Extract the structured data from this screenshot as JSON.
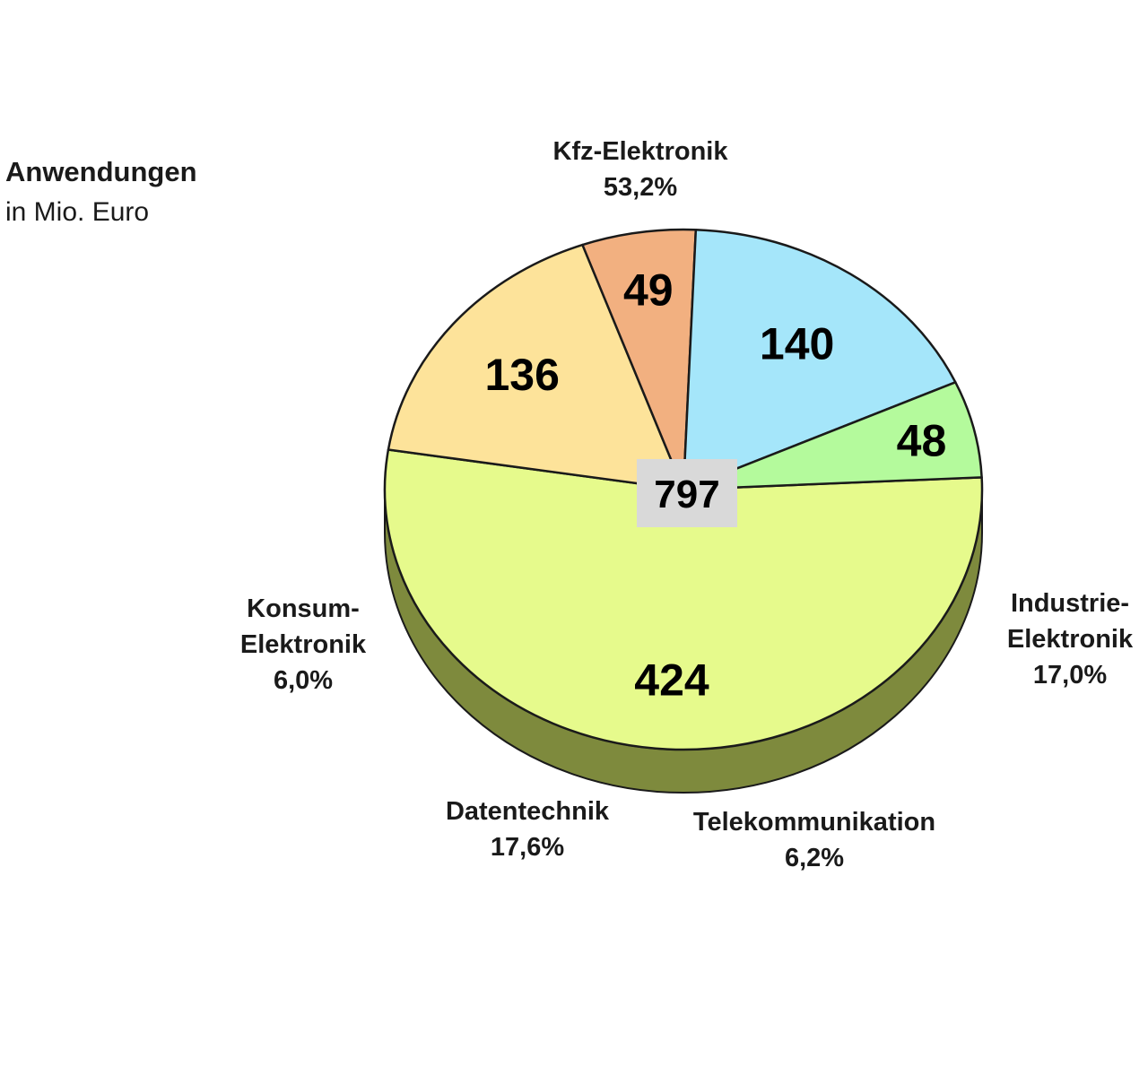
{
  "chart_data": {
    "type": "pie",
    "title": "Anwendungen",
    "subtitle": "in Mio. Euro",
    "total": "797",
    "slices": [
      {
        "label_lines": [
          "Kfz-Elektronik"
        ],
        "value": 424,
        "value_label": "424",
        "percent": "53,2%",
        "color": "#e6fa8c",
        "side_color": "#7e8a3d"
      },
      {
        "label_lines": [
          "Industrie-",
          "Elektronik"
        ],
        "value": 136,
        "value_label": "136",
        "percent": "17,0%",
        "color": "#fde39a",
        "side_color": "#8a7a4a"
      },
      {
        "label_lines": [
          "Telekommunikation"
        ],
        "value": 49,
        "value_label": "49",
        "percent": "6,2%",
        "color": "#f2b080",
        "side_color": "#7a4a2a"
      },
      {
        "label_lines": [
          "Datentechnik"
        ],
        "value": 140,
        "value_label": "140",
        "percent": "17,6%",
        "color": "#a5e6fa",
        "side_color": "#3d6578"
      },
      {
        "label_lines": [
          "Konsum-",
          "Elektronik"
        ],
        "value": 48,
        "value_label": "48",
        "percent": "6,0%",
        "color": "#b4fa9c",
        "side_color": "#557a3d"
      }
    ],
    "colors": {
      "outline": "#1a1a1a",
      "total_box": "#d9d9d9"
    }
  }
}
